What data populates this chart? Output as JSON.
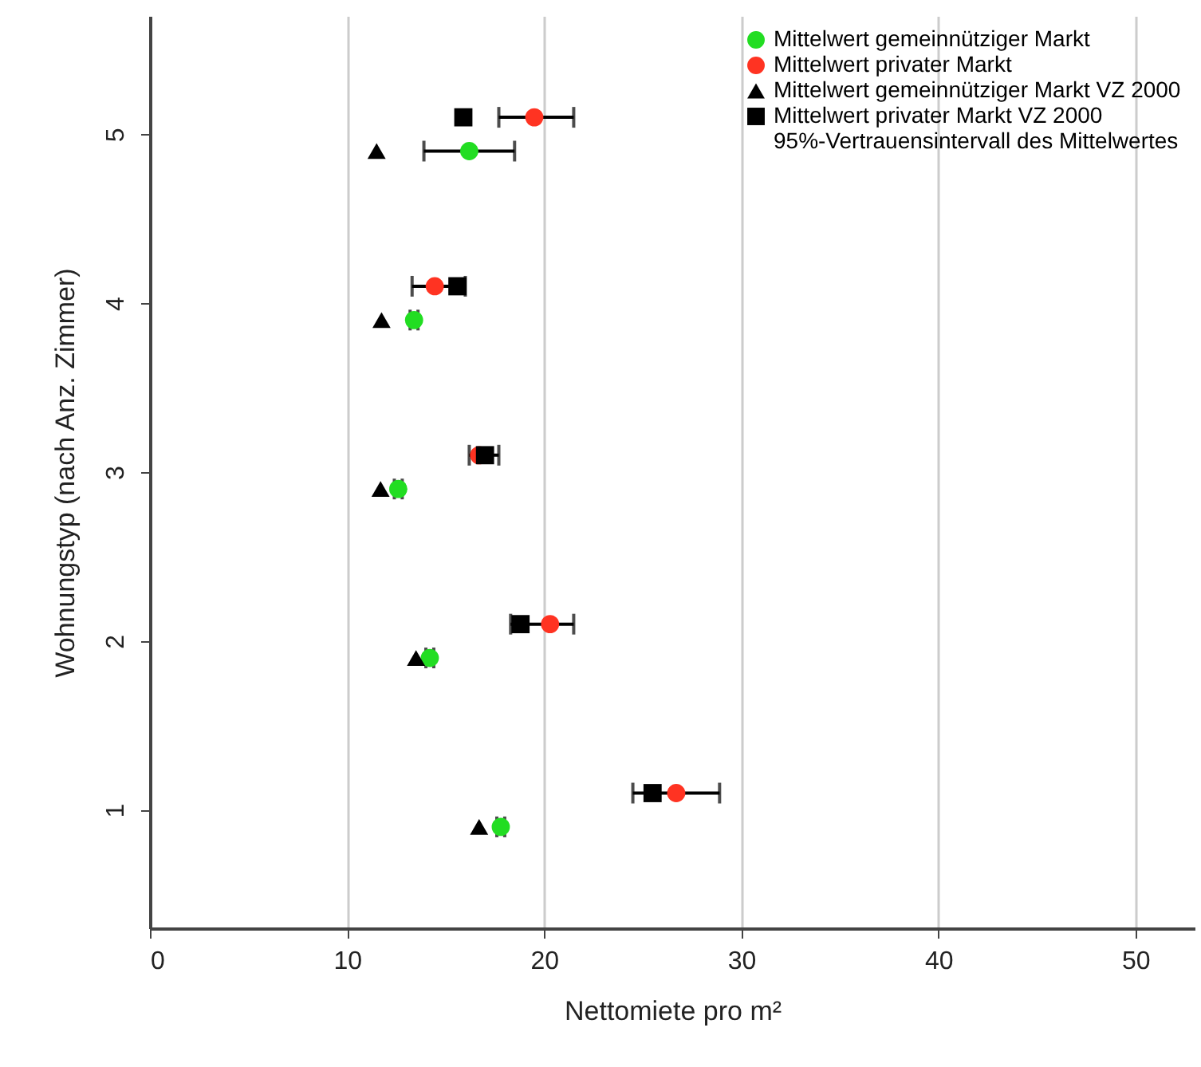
{
  "chart_data": {
    "type": "scatter",
    "xlabel": "Nettomiete pro m²",
    "ylabel": "Wohnungstyp (nach Anz. Zimmer)",
    "xlim": [
      0,
      53
    ],
    "xticks": [
      0,
      10,
      20,
      30,
      40,
      50
    ],
    "ylim": [
      0.3,
      5.7
    ],
    "yticks": [
      1,
      2,
      3,
      4,
      5
    ],
    "grid": "x",
    "legend": "top right",
    "annotations": [
      "95%-Vertrauensintervall des Mittelwertes"
    ],
    "series": [
      {
        "name": "Mittelwert gemeinnütziger Markt",
        "color": "#22dd22",
        "marker": "circle",
        "x": [
          17.8,
          14.2,
          12.6,
          13.4,
          16.2
        ],
        "values": [
          0.9,
          1.9,
          2.9,
          3.9,
          4.9
        ],
        "xerrors": [
          0.2,
          0.2,
          0.2,
          0.2,
          [
            13.9,
            18.5
          ]
        ]
      },
      {
        "name": "Mittelwert privater Markt",
        "color": "#ff3322",
        "marker": "circle",
        "x": [
          26.7,
          20.3,
          16.7,
          14.45,
          19.5
        ],
        "values": [
          1.1,
          2.1,
          3.1,
          4.1,
          5.1
        ],
        "xerrors": [
          [
            24.5,
            28.9
          ],
          [
            18.3,
            21.5
          ],
          [
            16.2,
            17.7
          ],
          [
            13.3,
            16.0
          ],
          [
            17.7,
            21.5
          ]
        ]
      },
      {
        "name": "Mittelwert gemeinnütziger Markt VZ 2000",
        "color": "#000000",
        "marker": "triangle",
        "x": [
          16.7,
          13.5,
          11.7,
          11.75,
          11.5
        ],
        "values": [
          0.9,
          1.9,
          2.9,
          3.9,
          4.9
        ]
      },
      {
        "name": "Mittelwert privater Markt VZ 2000",
        "color": "#000000",
        "marker": "square",
        "x": [
          25.5,
          18.8,
          17.0,
          15.6,
          15.9
        ],
        "values": [
          1.1,
          2.1,
          3.1,
          4.1,
          5.1
        ]
      }
    ]
  }
}
